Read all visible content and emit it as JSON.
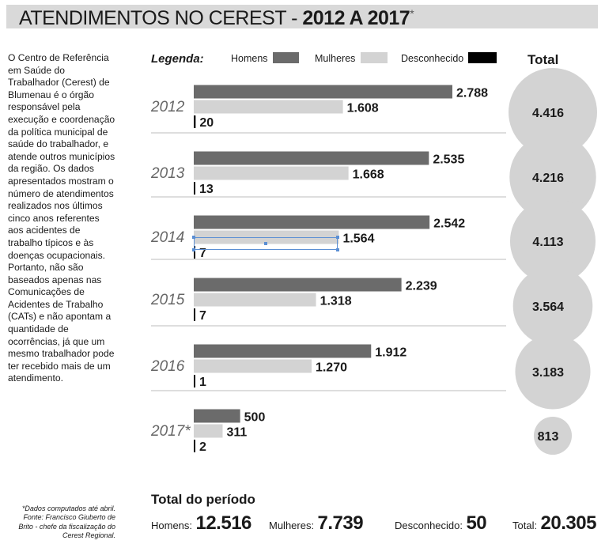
{
  "title": {
    "main": "ATENDIMENTOS NO CEREST - ",
    "years": "2012 A 2017",
    "star": "*"
  },
  "intro_text": "O Centro de Referência em Saúde do Trabalhador (Cerest) de Blumenau é o órgão responsável pela execução e coordenação da política municipal de saúde do trabalhador, e atende outros municípios da região. Os dados apresentados mostram o número de atendimentos realizados nos últimos cinco anos referentes aos acidentes de trabalho típicos e às doenças ocupacionais. Portanto, não são baseados apenas nas Comunicações de Acidentes de Trabalho (CATs) e não apontam a quantidade de ocorrências, já que um mesmo trabalhador pode ter recebido mais de um atendimento.",
  "footnote": "*Dados computados até abril. Fonte: Francisco Giuberto de Brito - chefe da fiscalização do Cerest Regional.",
  "legend": {
    "title": "Legenda:",
    "homens": "Homens",
    "mulheres": "Mulheres",
    "desconhecido": "Desconhecido"
  },
  "total_header": "Total",
  "colors": {
    "homens": "#6b6b6b",
    "mulheres": "#d3d3d3",
    "desconhecido": "#000000",
    "bubble": "#d3d3d3"
  },
  "chart_data": {
    "type": "bar",
    "orientation": "horizontal",
    "categories": [
      "2012",
      "2013",
      "2014",
      "2015",
      "2016",
      "2017*"
    ],
    "series": [
      {
        "name": "Homens",
        "values": [
          2788,
          2535,
          2542,
          2239,
          1912,
          500
        ],
        "labels": [
          "2.788",
          "2.535",
          "2.542",
          "2.239",
          "1.912",
          "500"
        ]
      },
      {
        "name": "Mulheres",
        "values": [
          1608,
          1668,
          1564,
          1318,
          1270,
          311
        ],
        "labels": [
          "1.608",
          "1.668",
          "1.564",
          "1.318",
          "1.270",
          "311"
        ]
      },
      {
        "name": "Desconhecido",
        "values": [
          20,
          13,
          7,
          7,
          1,
          2
        ],
        "labels": [
          "20",
          "13",
          "7",
          "7",
          "1",
          "2"
        ]
      }
    ],
    "totals": {
      "values": [
        4416,
        4216,
        4113,
        3564,
        3183,
        813
      ],
      "labels": [
        "4.416",
        "4.216",
        "4.113",
        "3.564",
        "3.183",
        "813"
      ]
    },
    "legend_position": "top",
    "grid": false
  },
  "period": {
    "title": "Total do período",
    "homens_label": "Homens:",
    "homens_value": "12.516",
    "mulheres_label": "Mulheres:",
    "mulheres_value": "7.739",
    "desconhecido_label": "Desconhecido:",
    "desconhecido_value": "50",
    "total_label": "Total:",
    "total_value": "20.305"
  }
}
